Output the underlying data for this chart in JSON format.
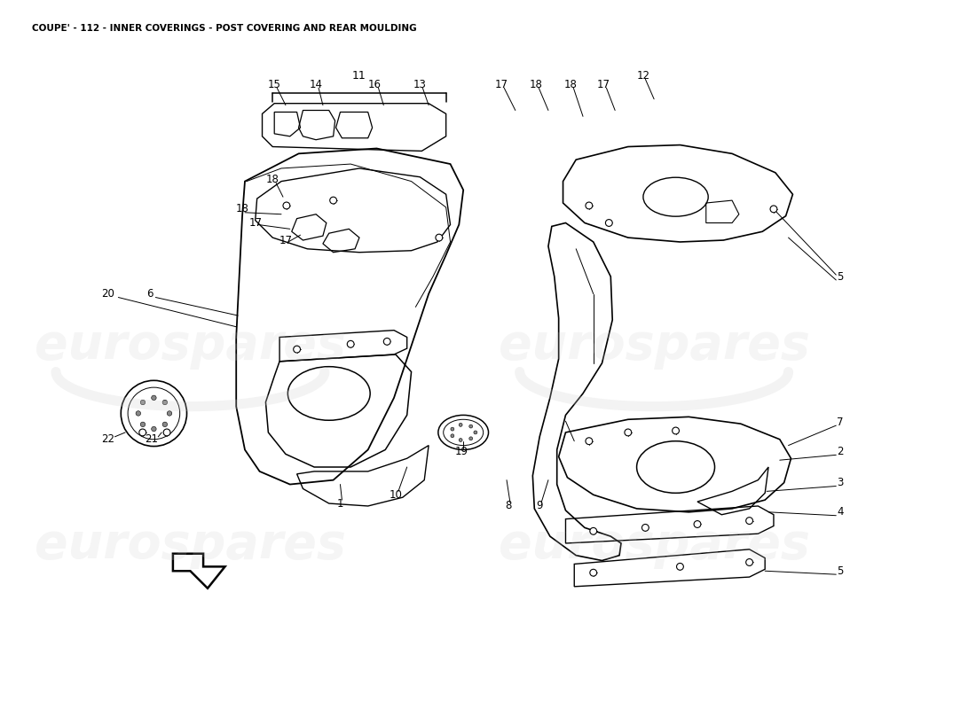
{
  "title": "COUPE' - 112 - INNER COVERINGS - POST COVERING AND REAR MOULDING",
  "title_fontsize": 7.5,
  "title_color": "#000000",
  "background_color": "#ffffff",
  "watermark_text": "eurospares",
  "figsize": [
    11.0,
    8.0
  ],
  "dpi": 100
}
